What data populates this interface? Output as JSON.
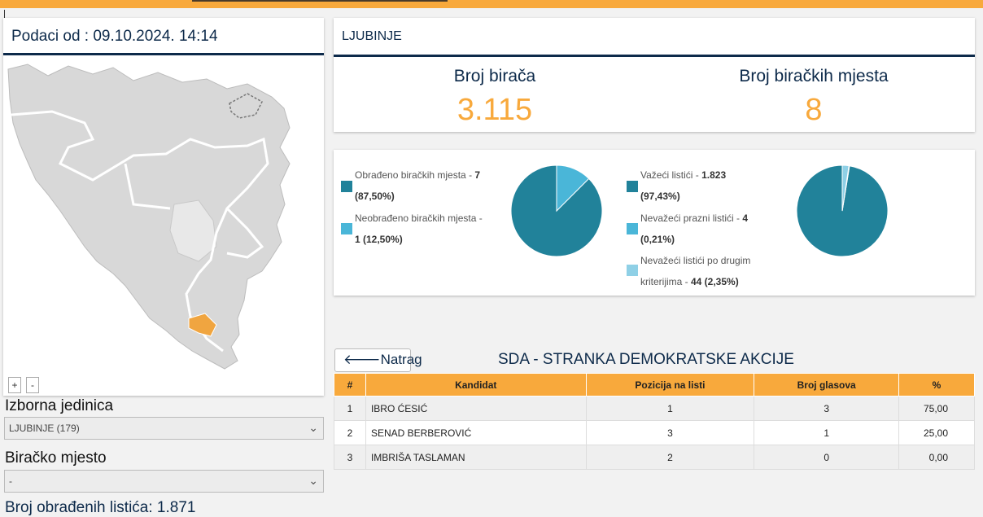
{
  "left": {
    "data_date": "Podaci od : 09.10.2024. 14:14",
    "zoom_in": "+",
    "zoom_out": "-",
    "izborna_label": "Izborna jedinica",
    "izborna_value": "LJUBINJE (179)",
    "biracko_label": "Biračko mjesto",
    "biracko_value": "-",
    "cut_text": "Broj obrađenih listića: 1.871"
  },
  "header": {
    "municipality": "LJUBINJE",
    "voters_label": "Broj birača",
    "voters_value": "3.115",
    "stations_label": "Broj biračkih mjesta",
    "stations_value": "8"
  },
  "stations_chart": {
    "processed_label": "Obrađeno biračkih mjesta - ",
    "processed_value": "7",
    "processed_pct": "(87,50%)",
    "unprocessed_label": "Neobrađeno biračkih mjesta - ",
    "unprocessed_value": "1 (12,50%)"
  },
  "ballots_chart": {
    "valid_label": "Važeći listići - ",
    "valid_value": "1.823",
    "valid_pct": "(97,43%)",
    "blank_label": "Nevažeći prazni listići - ",
    "blank_value": "4",
    "blank_pct": "(0,21%)",
    "other_label": "Nevažeći listići po drugim",
    "other_label2": "kriterijima - ",
    "other_value": "44 (2,35%)"
  },
  "chart_data": [
    {
      "type": "pie",
      "categories": [
        "Obrađeno biračkih mjesta",
        "Neobrađeno biračkih mjesta"
      ],
      "values": [
        87.5,
        12.5
      ],
      "colors": [
        "#21829a",
        "#4ab6d8"
      ]
    },
    {
      "type": "pie",
      "categories": [
        "Važeći listići",
        "Nevažeći prazni listići",
        "Nevažeći listići po drugim kriterijima"
      ],
      "values": [
        97.43,
        0.21,
        2.35
      ],
      "colors": [
        "#21829a",
        "#4ab6d8",
        "#8fd0e6"
      ]
    }
  ],
  "results": {
    "back_label": "Natrag",
    "party": "SDA - STRANKA DEMOKRATSKE AKCIJE",
    "columns": [
      "#",
      "Kandidat",
      "Pozicija na listi",
      "Broj glasova",
      "%"
    ],
    "rows": [
      [
        "1",
        "IBRO ĆESIĆ",
        "1",
        "3",
        "75,00"
      ],
      [
        "2",
        "SENAD BERBEROVIĆ",
        "3",
        "1",
        "25,00"
      ],
      [
        "3",
        "IMBRIŠA TASLAMAN",
        "2",
        "0",
        "0,00"
      ]
    ]
  },
  "colors": {
    "accent": "#f8a93c",
    "navy": "#0d2a4a",
    "teal": "#21829a",
    "highlight_region": "#f0a540"
  }
}
